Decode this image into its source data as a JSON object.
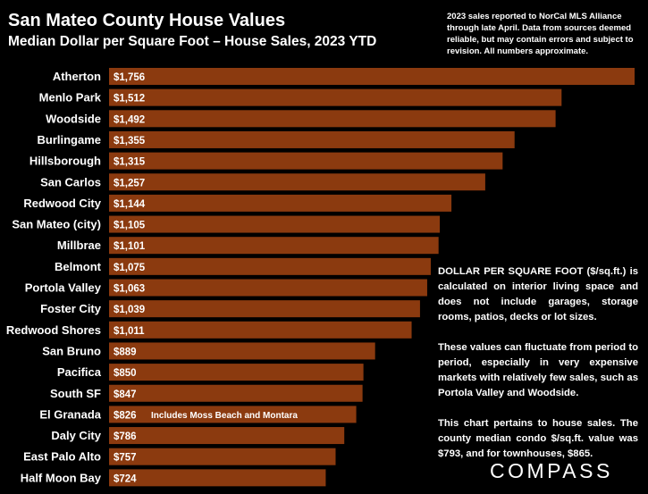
{
  "header": {
    "title": "San Mateo County House Values",
    "subtitle": "Median Dollar per Square Foot – House Sales, 2023 YTD"
  },
  "source_note": "2023 sales reported to NorCal MLS Alliance through late April. Data from sources deemed reliable, but may contain errors and subject to revision. All numbers approximate.",
  "chart_data": {
    "type": "bar",
    "orientation": "horizontal",
    "title": "San Mateo County House Values",
    "subtitle": "Median Dollar per Square Foot – House Sales, 2023 YTD",
    "xlabel": "",
    "ylabel": "",
    "bar_color": "#8B3A0F",
    "categories": [
      "Atherton",
      "Menlo Park",
      "Woodside",
      "Burlingame",
      "Hillsborough",
      "San Carlos",
      "Redwood City",
      "San Mateo (city)",
      "Millbrae",
      "Belmont",
      "Portola Valley",
      "Foster City",
      "Redwood Shores",
      "San Bruno",
      "Pacifica",
      "South SF",
      "El Granada",
      "Daly City",
      "East Palo Alto",
      "Half Moon Bay"
    ],
    "values": [
      1756,
      1512,
      1492,
      1355,
      1315,
      1257,
      1144,
      1105,
      1101,
      1075,
      1063,
      1039,
      1011,
      889,
      850,
      847,
      826,
      786,
      757,
      724
    ],
    "value_labels": [
      "$1,756",
      "$1,512",
      "$1,492",
      "$1,355",
      "$1,315",
      "$1,257",
      "$1,144",
      "$1,105",
      "$1,101",
      "$1,075",
      "$1,063",
      "$1,039",
      "$1,011",
      "$889",
      "$850",
      "$847",
      "$826",
      "$786",
      "$757",
      "$724"
    ],
    "annotations": [
      {
        "category": "El Granada",
        "text": "Includes Moss Beach and Montara"
      }
    ]
  },
  "notes": [
    "DOLLAR PER SQUARE FOOT ($/sq.ft.) is calculated on interior living space and does not include garages, storage rooms, patios, decks or lot sizes.",
    "These values can fluctuate from period to period, especially in very expensive markets with relatively few sales, such as Portola Valley and Woodside.",
    "This chart pertains to house sales. The county median condo $/sq.ft. value was $793, and for townhouses, $865."
  ],
  "logo": "COMPASS"
}
